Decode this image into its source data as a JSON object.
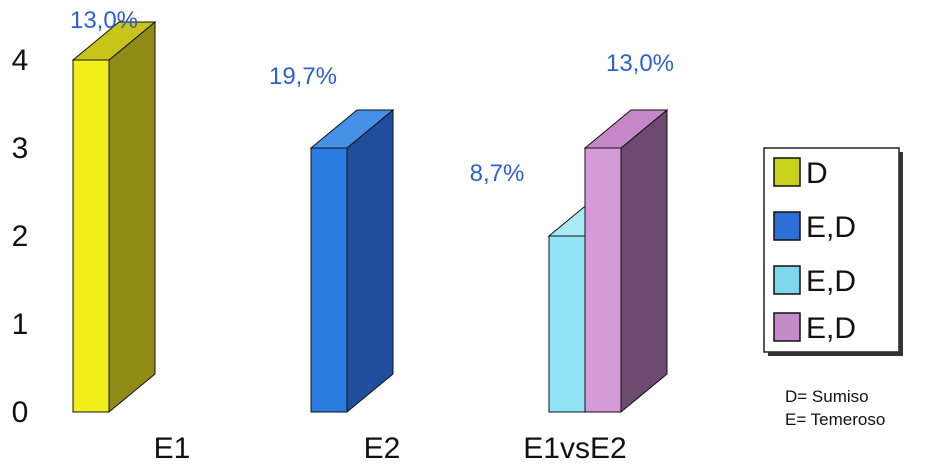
{
  "chart_data": {
    "type": "bar",
    "style": "3d-column",
    "categories": [
      "E1",
      "E2",
      "E1vsE2"
    ],
    "yticks": [
      0,
      1,
      2,
      3,
      4
    ],
    "ylim": [
      0,
      4
    ],
    "grid": false,
    "legend_position": "right",
    "bars": [
      {
        "category": "E1",
        "series_index": 0,
        "value": 4,
        "label": "13,0%"
      },
      {
        "category": "E2",
        "series_index": 1,
        "value": 3,
        "label": "19,7%"
      },
      {
        "category": "E1vsE2",
        "series_index": 2,
        "value": 2,
        "label": "8,7%"
      },
      {
        "category": "E1vsE2",
        "series_index": 3,
        "value": 3,
        "label": "13,0%"
      }
    ],
    "series": [
      {
        "legend": "D",
        "front": "#f2ee1a",
        "side": "#8f8b14",
        "top": "#c8c418",
        "legend_face": "#c9d21a"
      },
      {
        "legend": "E,D",
        "front": "#2b7be0",
        "side": "#1f4e9c",
        "top": "#4690e8",
        "legend_face": "#2c6fd8"
      },
      {
        "legend": "E,D",
        "front": "#8fe3f5",
        "side": "#4fb8d6",
        "top": "#a8ebf7",
        "legend_face": "#7fd7ee"
      },
      {
        "legend": "E,D",
        "front": "#d69ad8",
        "side": "#6d4a70",
        "top": "#c587c8",
        "legend_face": "#c48ac9"
      }
    ],
    "data_label_color": "#2f5fd1",
    "notes": [
      "D= Sumiso",
      "E= Temeroso"
    ]
  }
}
